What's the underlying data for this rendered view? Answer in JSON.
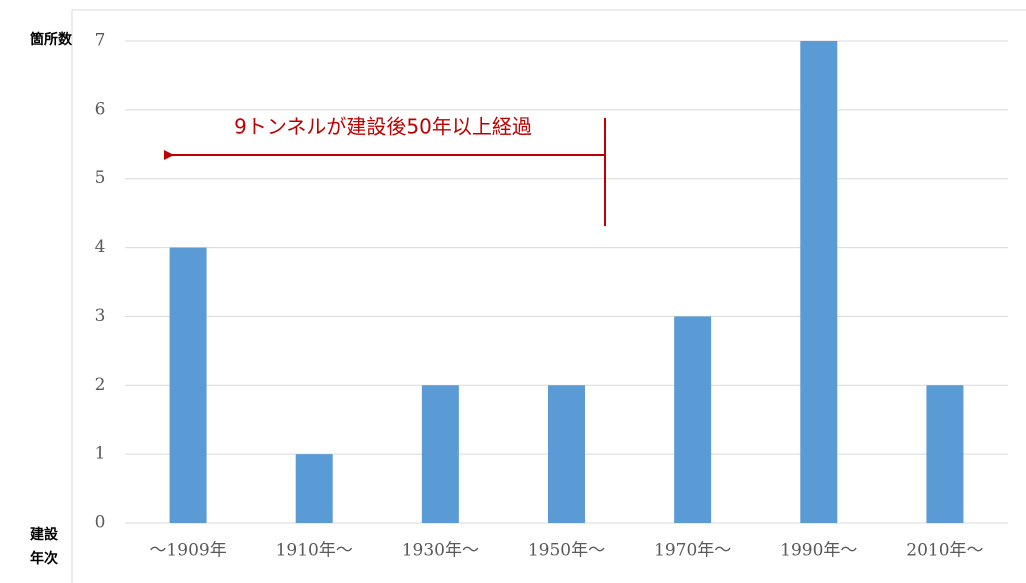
{
  "chart_data": {
    "type": "bar",
    "ylabel": "箇所数",
    "xlabel": [
      "建設",
      "年次"
    ],
    "annotation": "9トンネルが建設後50年以上経過",
    "categories": [
      "～1909年",
      "1910年～",
      "1930年～",
      "1950年～",
      "1970年～",
      "1990年～",
      "2010年～"
    ],
    "values": [
      4,
      1,
      2,
      2,
      3,
      7,
      2
    ],
    "color": "#5b9bd5",
    "ylim": [
      0,
      7
    ],
    "yticks": [
      0,
      1,
      2,
      3,
      4,
      5,
      6,
      7
    ],
    "grid": true
  }
}
